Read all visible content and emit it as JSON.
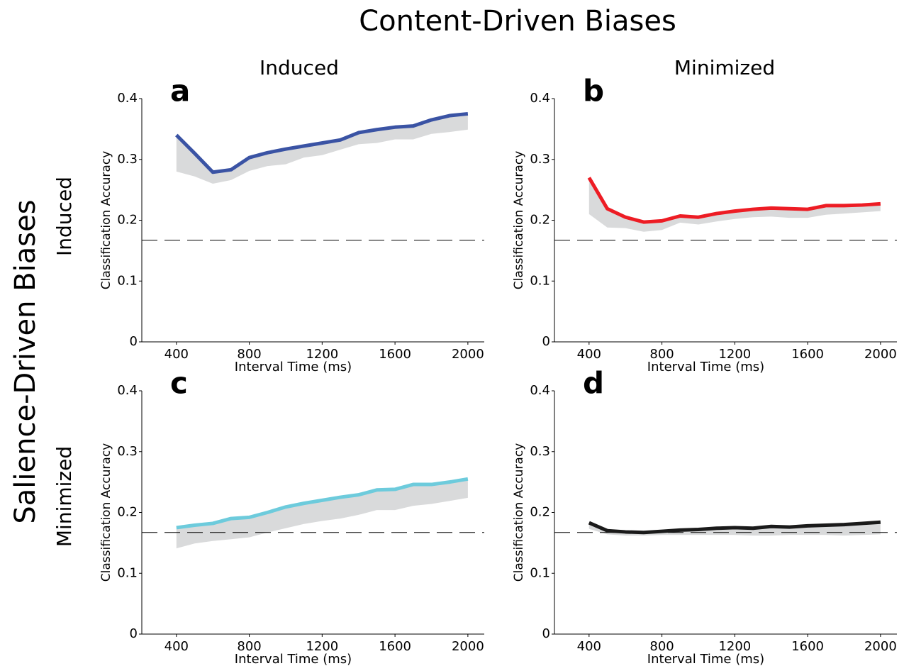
{
  "title": "Content-Driven Biases",
  "column_labels": [
    "Induced",
    "Minimized"
  ],
  "row_title": "Salience-Driven Biases",
  "row_labels": [
    "Induced",
    "Minimized"
  ],
  "chart_data": [
    {
      "type": "line",
      "panel_label": "a",
      "xlabel": "Interval Time (ms)",
      "ylabel": "Classification Accuracy",
      "x": [
        400,
        500,
        600,
        700,
        800,
        900,
        1000,
        1100,
        1200,
        1300,
        1400,
        1500,
        1600,
        1700,
        1800,
        1900,
        2000
      ],
      "series": [
        {
          "color": "#3a53a4",
          "band_color": "#d9dadb",
          "values": [
            0.34,
            0.31,
            0.279,
            0.283,
            0.303,
            0.311,
            0.317,
            0.322,
            0.327,
            0.332,
            0.344,
            0.349,
            0.353,
            0.355,
            0.365,
            0.372,
            0.375
          ],
          "band_lower": [
            0.28,
            0.272,
            0.26,
            0.266,
            0.281,
            0.289,
            0.292,
            0.303,
            0.307,
            0.316,
            0.325,
            0.327,
            0.333,
            0.333,
            0.342,
            0.345,
            0.349
          ]
        }
      ],
      "reference_line": 0.167,
      "xlim": [
        210,
        2090
      ],
      "xticks": [
        400,
        800,
        1200,
        1600,
        2000
      ],
      "ylim": [
        0,
        0.4
      ],
      "yticks": [
        0,
        0.1,
        0.2,
        0.3,
        0.4
      ]
    },
    {
      "type": "line",
      "panel_label": "b",
      "xlabel": "Interval Time (ms)",
      "ylabel": "Classification Accuracy",
      "x": [
        400,
        500,
        600,
        700,
        800,
        900,
        1000,
        1100,
        1200,
        1300,
        1400,
        1500,
        1600,
        1700,
        1800,
        1900,
        2000
      ],
      "series": [
        {
          "color": "#ed1c24",
          "band_color": "#d9dadb",
          "values": [
            0.27,
            0.219,
            0.205,
            0.197,
            0.199,
            0.207,
            0.205,
            0.211,
            0.215,
            0.218,
            0.22,
            0.219,
            0.218,
            0.224,
            0.224,
            0.225,
            0.227
          ],
          "band_lower": [
            0.21,
            0.188,
            0.187,
            0.181,
            0.184,
            0.196,
            0.193,
            0.198,
            0.202,
            0.205,
            0.206,
            0.204,
            0.204,
            0.209,
            0.211,
            0.213,
            0.215
          ]
        }
      ],
      "reference_line": 0.167,
      "xlim": [
        210,
        2090
      ],
      "xticks": [
        400,
        800,
        1200,
        1600,
        2000
      ],
      "ylim": [
        0,
        0.4
      ],
      "yticks": [
        0,
        0.1,
        0.2,
        0.3,
        0.4
      ]
    },
    {
      "type": "line",
      "panel_label": "c",
      "xlabel": "Interval Time (ms)",
      "ylabel": "Classification Accuracy",
      "x": [
        400,
        500,
        600,
        700,
        800,
        900,
        1000,
        1100,
        1200,
        1300,
        1400,
        1500,
        1600,
        1700,
        1800,
        1900,
        2000
      ],
      "series": [
        {
          "color": "#6dcbdc",
          "band_color": "#d9dadb",
          "values": [
            0.175,
            0.179,
            0.182,
            0.19,
            0.192,
            0.2,
            0.209,
            0.215,
            0.22,
            0.225,
            0.229,
            0.237,
            0.238,
            0.246,
            0.246,
            0.25,
            0.255
          ],
          "band_lower": [
            0.141,
            0.149,
            0.153,
            0.156,
            0.159,
            0.167,
            0.174,
            0.181,
            0.186,
            0.19,
            0.196,
            0.204,
            0.204,
            0.211,
            0.214,
            0.219,
            0.224
          ]
        }
      ],
      "reference_line": 0.167,
      "xlim": [
        210,
        2090
      ],
      "xticks": [
        400,
        800,
        1200,
        1600,
        2000
      ],
      "ylim": [
        0,
        0.4
      ],
      "yticks": [
        0,
        0.1,
        0.2,
        0.3,
        0.4
      ]
    },
    {
      "type": "line",
      "panel_label": "d",
      "xlabel": "Interval Time (ms)",
      "ylabel": "Classification Accuracy",
      "x": [
        400,
        500,
        600,
        700,
        800,
        900,
        1000,
        1100,
        1200,
        1300,
        1400,
        1500,
        1600,
        1700,
        1800,
        1900,
        2000
      ],
      "series": [
        {
          "color": "#1a1a1a",
          "band_color": "#d9dadb",
          "values": [
            0.183,
            0.17,
            0.168,
            0.167,
            0.169,
            0.171,
            0.172,
            0.174,
            0.175,
            0.174,
            0.177,
            0.176,
            0.178,
            0.179,
            0.18,
            0.182,
            0.184
          ],
          "band_lower": [
            0.173,
            0.164,
            0.162,
            0.162,
            0.163,
            0.163,
            0.163,
            0.163,
            0.163,
            0.162,
            0.162,
            0.163,
            0.163,
            0.163,
            0.162,
            0.163,
            0.164
          ]
        }
      ],
      "reference_line": 0.167,
      "xlim": [
        210,
        2090
      ],
      "xticks": [
        400,
        800,
        1200,
        1600,
        2000
      ],
      "ylim": [
        0,
        0.4
      ],
      "yticks": [
        0,
        0.1,
        0.2,
        0.3,
        0.4
      ]
    }
  ]
}
